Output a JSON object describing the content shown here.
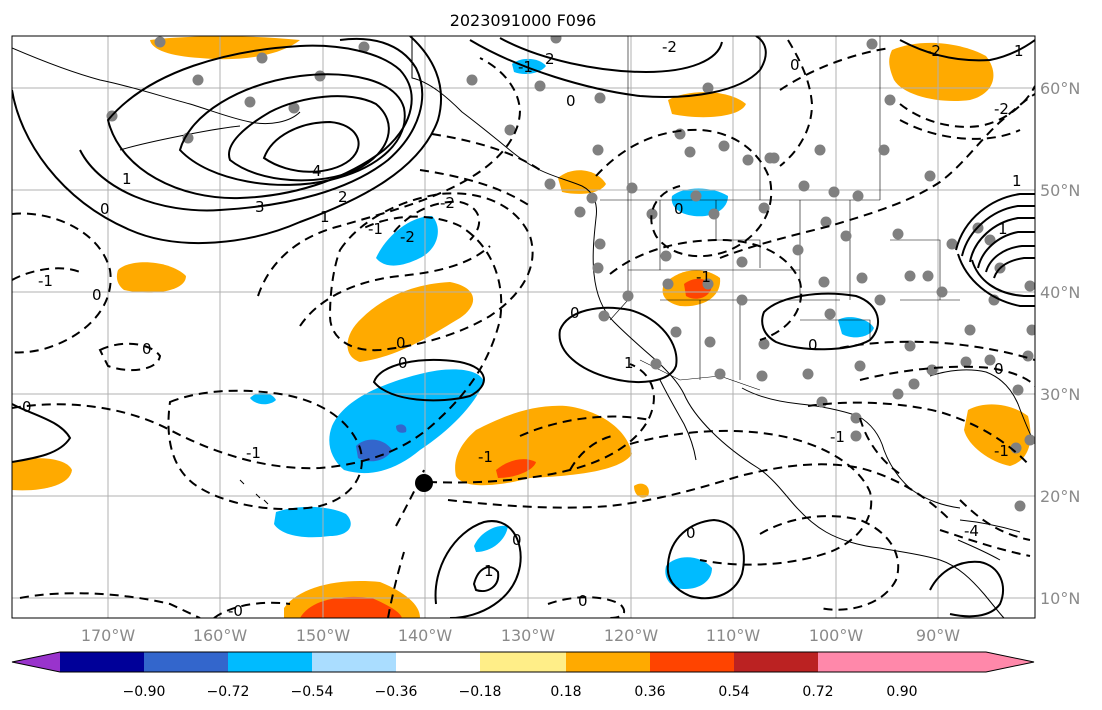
{
  "title": "2023091000 F096",
  "longitude_ticks": [
    "170°W",
    "160°W",
    "150°W",
    "140°W",
    "130°W",
    "120°W",
    "110°W",
    "100°W",
    "90°W"
  ],
  "latitude_ticks": [
    "60°N",
    "50°N",
    "40°N",
    "30°N",
    "20°N",
    "10°N"
  ],
  "colorbar": {
    "tick_labels": [
      "−0.90",
      "−0.72",
      "−0.54",
      "−0.36",
      "−0.18",
      "0.18",
      "0.36",
      "0.54",
      "0.72",
      "0.90"
    ],
    "colors": [
      "#9933cc",
      "#000099",
      "#3366cc",
      "#00bbff",
      "#aaddff",
      "#ffffff",
      "#ffee88",
      "#ffaa00",
      "#ff4400",
      "#bb2222",
      "#ff88aa"
    ]
  },
  "contour_labels": [
    "-4",
    "-2",
    "-2",
    "-1",
    "-1",
    "-1",
    "-1",
    "-1",
    "-1",
    "-2",
    "0",
    "0",
    "0",
    "0",
    "0",
    "0",
    "0",
    "0",
    "0",
    "-0",
    "0",
    "0",
    "0",
    "0",
    "0",
    "0",
    "1",
    "1",
    "1",
    "-1",
    "2",
    "-2",
    "2",
    "3",
    "4",
    "1",
    "1",
    "-2",
    "1",
    "-1",
    "1"
  ],
  "colors": {
    "land_line": "#000000",
    "grid": "#b0b0b0",
    "station": "#808080",
    "orange": "#ffaa00",
    "red": "#ff4400",
    "cyan": "#00bbff",
    "blue": "#3366cc"
  }
}
